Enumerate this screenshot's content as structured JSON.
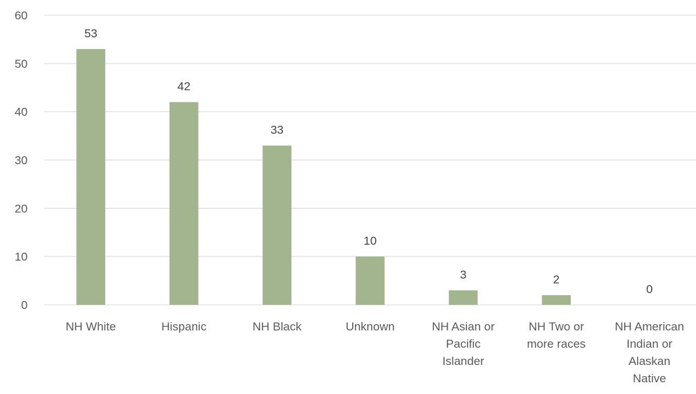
{
  "chart_data": {
    "type": "bar",
    "categories": [
      [
        "NH White"
      ],
      [
        "Hispanic"
      ],
      [
        "NH Black"
      ],
      [
        "Unknown"
      ],
      [
        "NH Asian or",
        "Pacific",
        "Islander"
      ],
      [
        "NH Two or",
        "more races"
      ],
      [
        "NH American",
        "Indian or",
        "Alaskan",
        "Native"
      ]
    ],
    "values": [
      53,
      42,
      33,
      10,
      3,
      2,
      0
    ],
    "ylim": [
      0,
      60
    ],
    "yticks": [
      0,
      10,
      20,
      30,
      40,
      50,
      60
    ],
    "grid": true,
    "legend": "none",
    "bar_color": "#a2b58f"
  }
}
